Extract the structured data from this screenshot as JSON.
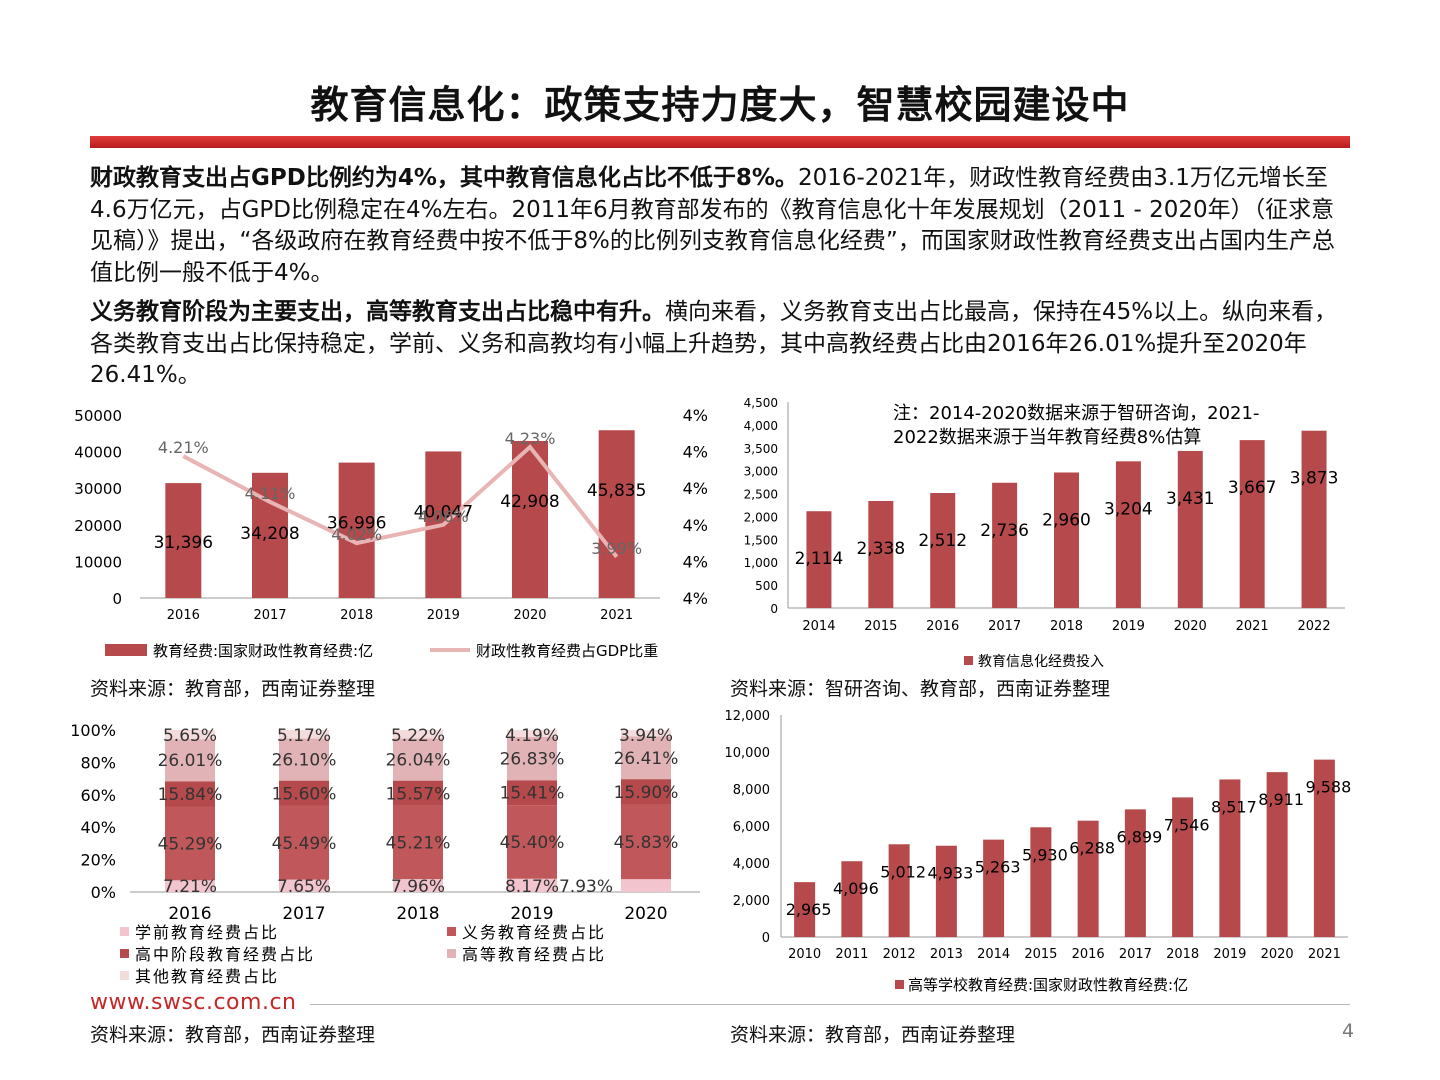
{
  "page": {
    "title": "教育信息化：政策支持力度大，智慧校园建设中",
    "para1_bold": "财政教育支出占GPD比例约为4%，其中教育信息化占比不低于8%。",
    "para1_text": "2016-2021年，财政性教育经费由3.1万亿元增长至4.6万亿元，占GPD比例稳定在4%左右。2011年6月教育部发布的《教育信息化十年发展规划（2011 - 2020年）（征求意见稿）》提出，“各级政府在教育经费中按不低于8%的比例列支教育信息化经费”，而国家财政性教育经费支出占国内生产总值比例一般不低于4%。",
    "para2_bold": "义务教育阶段为主要支出，高等教育支出占比稳中有升。",
    "para2_text": "横向来看，义务教育支出占比最高，保持在45%以上。纵向来看，各类教育支出占比保持稳定，学前、义务和高教均有小幅上升趋势，其中高教经费占比由2016年26.01%提升至2020年26.41%。",
    "source_1": "资料来源：教育部，西南证券整理",
    "source_2": "资料来源：智研咨询、教育部，西南证券整理",
    "source_3": "资料来源：教育部，西南证券整理",
    "source_4": "资料来源：教育部，西南证券整理",
    "website": "www.swsc.com.cn",
    "page_number": "4"
  },
  "colors": {
    "bar": "#b5494b",
    "line": "#e8b4b4",
    "accent": "#c62828",
    "seg_preschool": "#f2c4cd",
    "seg_compulsory": "#c0575a",
    "seg_highschool": "#b5494b",
    "seg_higher": "#e2b3b6",
    "seg_other": "#f4dcdc"
  },
  "chart_data": [
    {
      "type": "bar",
      "categories": [
        "2016",
        "2017",
        "2018",
        "2019",
        "2020",
        "2021"
      ],
      "series": [
        {
          "name": "教育经费:国家财政性教育经费:亿",
          "type": "bar",
          "axis": "left",
          "values": [
            31396,
            34208,
            36996,
            40047,
            42908,
            45835
          ],
          "labels": [
            "31,396",
            "34,208",
            "36,996",
            "40,047",
            "42,908",
            "45,835"
          ]
        },
        {
          "name": "财政性教育经费占GDP比重",
          "type": "line",
          "axis": "right",
          "values": [
            4.21,
            4.11,
            4.02,
            4.06,
            4.23,
            3.99
          ],
          "labels": [
            "4.21%",
            "4.11%",
            "4.02%",
            "4.06%",
            "4.23%",
            "3.99%"
          ]
        }
      ],
      "yticks_left": [
        "0",
        "10000",
        "20000",
        "30000",
        "40000",
        "50000"
      ],
      "yticks_right": [
        "4%",
        "4%",
        "4%",
        "4%",
        "4%",
        "4%"
      ],
      "ylim_left": [
        0,
        50000
      ],
      "ylim_right": [
        3.9,
        4.3
      ],
      "legend": "bottom"
    },
    {
      "type": "bar",
      "categories": [
        "2014",
        "2015",
        "2016",
        "2017",
        "2018",
        "2019",
        "2020",
        "2021",
        "2022"
      ],
      "series": [
        {
          "name": "教育信息化经费投入",
          "values": [
            2114,
            2338,
            2512,
            2736,
            2960,
            3204,
            3431,
            3667,
            3873
          ],
          "labels": [
            "2,114",
            "2,338",
            "2,512",
            "2,736",
            "2,960",
            "3,204",
            "3,431",
            "3,667",
            "3,873"
          ]
        }
      ],
      "yticks": [
        "0",
        "500",
        "1,000",
        "1,500",
        "2,000",
        "2,500",
        "3,000",
        "3,500",
        "4,000",
        "4,500"
      ],
      "ylim": [
        0,
        4500
      ],
      "note_line1": "注：2014-2020数据来源于智研咨询，2021-",
      "note_line2": "2022数据来源于当年教育经费8%估算",
      "legend": "bottom"
    },
    {
      "type": "bar",
      "stacked": true,
      "categories": [
        "2016",
        "2017",
        "2018",
        "2019",
        "2020"
      ],
      "series": [
        {
          "name": "学前教育经费占比",
          "values": [
            7.21,
            7.65,
            7.96,
            8.17,
            7.93
          ],
          "labels": [
            "7.21%",
            "7.65%",
            "7.96%",
            "8.17%",
            "7.93%"
          ]
        },
        {
          "name": "义务教育经费占比",
          "values": [
            45.29,
            45.49,
            45.21,
            45.4,
            45.83
          ],
          "labels": [
            "45.29%",
            "45.49%",
            "45.21%",
            "45.40%",
            "45.83%"
          ]
        },
        {
          "name": "高中阶段教育经费占比",
          "values": [
            15.84,
            15.6,
            15.57,
            15.41,
            15.9
          ],
          "labels": [
            "15.84%",
            "15.60%",
            "15.57%",
            "15.41%",
            "15.90%"
          ]
        },
        {
          "name": "高等教育经费占比",
          "values": [
            26.01,
            26.1,
            26.04,
            26.83,
            26.41
          ],
          "labels": [
            "26.01%",
            "26.10%",
            "26.04%",
            "26.83%",
            "26.41%"
          ]
        },
        {
          "name": "其他教育经费占比",
          "values": [
            5.65,
            5.17,
            5.22,
            4.19,
            3.94
          ],
          "labels": [
            "5.65%",
            "5.17%",
            "5.22%",
            "4.19%",
            "3.94%"
          ]
        }
      ],
      "yticks": [
        "0%",
        "20%",
        "40%",
        "60%",
        "80%",
        "100%"
      ],
      "ylim": [
        0,
        100
      ],
      "legend": "bottom"
    },
    {
      "type": "bar",
      "categories": [
        "2010",
        "2011",
        "2012",
        "2013",
        "2014",
        "2015",
        "2016",
        "2017",
        "2018",
        "2019",
        "2020",
        "2021"
      ],
      "series": [
        {
          "name": "高等学校教育经费:国家财政性教育经费:亿",
          "values": [
            2965,
            4096,
            5012,
            4933,
            5263,
            5930,
            6288,
            6899,
            7546,
            8517,
            8911,
            9588
          ],
          "labels": [
            "2,965",
            "4,096",
            "5,012",
            "4,933",
            "5,263",
            "5,930",
            "6,288",
            "6,899",
            "7,546",
            "8,517",
            "8,911",
            "9,588"
          ]
        }
      ],
      "yticks": [
        "0",
        "2,000",
        "4,000",
        "6,000",
        "8,000",
        "10,000",
        "12,000"
      ],
      "ylim": [
        0,
        12000
      ],
      "legend": "bottom"
    }
  ]
}
